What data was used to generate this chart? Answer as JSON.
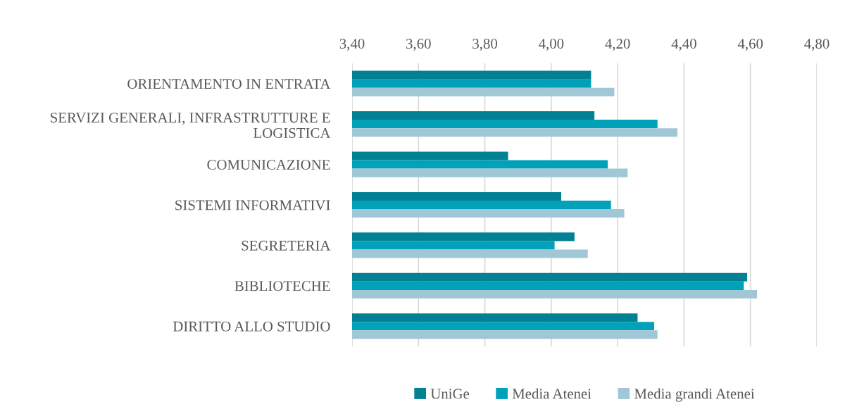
{
  "chart_data": {
    "type": "bar",
    "orientation": "horizontal",
    "categories": [
      "ORIENTAMENTO IN ENTRATA",
      "SERVIZI GENERALI, INFRASTRUTTURE E\nLOGISTICA",
      "COMUNICAZIONE",
      "SISTEMI INFORMATIVI",
      "SEGRETERIA",
      "BIBLIOTECHE",
      "DIRITTO ALLO STUDIO"
    ],
    "series": [
      {
        "name": "UniGe",
        "color": "#028094",
        "values": [
          4.12,
          4.13,
          3.87,
          4.03,
          4.07,
          4.59,
          4.26
        ]
      },
      {
        "name": "Media Atenei",
        "color": "#00a1b9",
        "values": [
          4.12,
          4.32,
          4.17,
          4.18,
          4.01,
          4.58,
          4.31
        ]
      },
      {
        "name": "Media grandi Atenei",
        "color": "#a0c7d5",
        "values": [
          4.19,
          4.38,
          4.23,
          4.22,
          4.11,
          4.62,
          4.32
        ]
      }
    ],
    "xlim": [
      3.4,
      4.8
    ],
    "xticks": [
      {
        "value": 3.4,
        "label": "3,40"
      },
      {
        "value": 3.6,
        "label": "3,60"
      },
      {
        "value": 3.8,
        "label": "3,80"
      },
      {
        "value": 4.0,
        "label": "4,00"
      },
      {
        "value": 4.2,
        "label": "4,20"
      },
      {
        "value": 4.4,
        "label": "4,40"
      },
      {
        "value": 4.6,
        "label": "4,60"
      },
      {
        "value": 4.8,
        "label": "4,80"
      }
    ],
    "grid": "x",
    "legend": "bottom"
  }
}
